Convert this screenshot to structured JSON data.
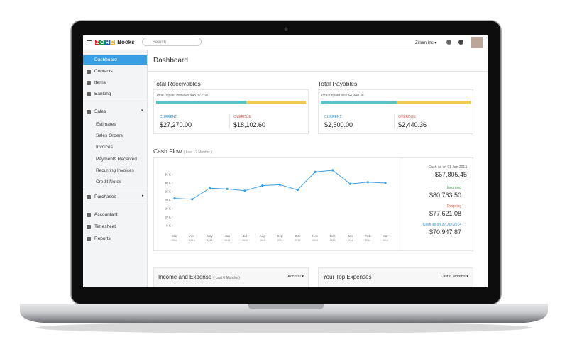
{
  "topbar": {
    "logo": [
      "Z",
      "O",
      "H",
      "O"
    ],
    "product": "Books",
    "search": "Search",
    "org": "Zillum Inc"
  },
  "sidebar": {
    "items": [
      "Dashboard",
      "Contacts",
      "Items",
      "Banking",
      "Sales",
      "Estimates",
      "Sales Orders",
      "Invoices",
      "Payments Received",
      "Recurring Invoices",
      "Credit Notes",
      "Purchases",
      "Accountant",
      "Timesheet",
      "Reports"
    ]
  },
  "page_title": "Dashboard",
  "receivables": {
    "title": "Total Receivables",
    "total": "Total unpaid invoices $45,372.60",
    "current_label": "CURRENT",
    "current": {
      "value": 27270,
      "label": "$27,270.00"
    },
    "overdue_label": "OVERDUE",
    "overdue": {
      "value": 18102.6,
      "label": "$18,102.60"
    }
  },
  "payables": {
    "title": "Total Payables",
    "total": "Total unpaid bills $4,940.36",
    "current_label": "CURRENT",
    "current": {
      "value": 2500,
      "label": "$2,500.00"
    },
    "overdue_label": "OVERDUE",
    "overdue": {
      "value": 2440.36,
      "label": "$2,440.36"
    }
  },
  "cash_flow": {
    "type": "line",
    "title": "Cash Flow",
    "subtitle": "( Last 12 Months )",
    "color": "#3a9ee4",
    "x_labels": [
      [
        "Mar",
        "2013"
      ],
      [
        "Apr",
        "2013"
      ],
      [
        "May",
        "2013"
      ],
      [
        "Jun",
        "2013"
      ],
      [
        "Jul",
        "2013"
      ],
      [
        "Aug",
        "2013"
      ],
      [
        "Sep",
        "2013"
      ],
      [
        "Oct",
        "2013"
      ],
      [
        "Nov",
        "2013"
      ],
      [
        "Dec",
        "2013"
      ],
      [
        "Jan",
        "2014"
      ],
      [
        "Feb",
        "2014"
      ],
      [
        "Mar",
        "2014"
      ]
    ],
    "values": [
      21,
      20.5,
      27,
      26.5,
      25.5,
      28.5,
      29,
      26,
      36.5,
      37.5,
      29.5,
      30.5,
      30
    ],
    "ylim": [
      2.5,
      40
    ],
    "yticks": [
      {
        "value": 5,
        "label": "5 K"
      },
      {
        "value": 10,
        "label": "10 K"
      },
      {
        "value": 15,
        "label": "15 K"
      },
      {
        "value": 20,
        "label": "20 K"
      },
      {
        "value": 25,
        "label": "25 K"
      },
      {
        "value": 30,
        "label": "30 K"
      },
      {
        "value": 35,
        "label": "35 K"
      }
    ],
    "summary": [
      {
        "label": "Cash as on 01 Jan 2013",
        "amount": "$67,805.45"
      },
      {
        "label": "Incoming",
        "amount": "$80,763.50"
      },
      {
        "label": "Outgoing",
        "amount": "$77,621.08"
      },
      {
        "label": "Cash as on 27 Jan 2014",
        "amount": "$70,947.87"
      }
    ]
  },
  "income_expense": {
    "title": "Income and Expense",
    "subtitle": "( Last 6 Months )",
    "basis": "Accrual"
  },
  "top_expenses": {
    "title": "Your Top Expenses",
    "period": "Last 6 Months"
  }
}
